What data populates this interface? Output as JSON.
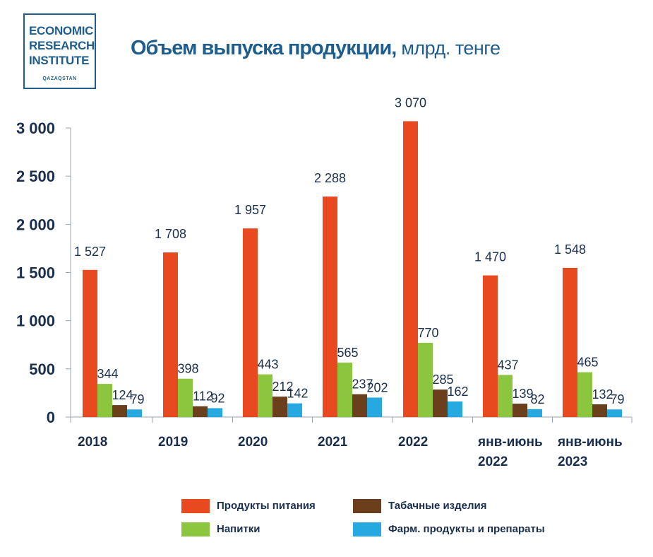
{
  "logo": {
    "line1": "ECONOMIC",
    "line2": "RESEARCH",
    "line3": "INSTITUTE",
    "sub": "QAZAQSTAN"
  },
  "title": {
    "main": "Объем выпуска продукции,",
    "unit": " млрд. тенге"
  },
  "chart_data": {
    "type": "bar",
    "categories": [
      [
        "2018"
      ],
      [
        "2019"
      ],
      [
        "2020"
      ],
      [
        "2021"
      ],
      [
        "2022"
      ],
      [
        "янв-июнь",
        "2022"
      ],
      [
        "янв-июнь",
        "2023"
      ]
    ],
    "series": [
      {
        "name": "Продукты питания",
        "color": "#e8491e",
        "values": [
          1527,
          1708,
          1957,
          2288,
          3070,
          1470,
          1548
        ],
        "labels": [
          "1 527",
          "1 708",
          "1 957",
          "2 288",
          "3 070",
          "1 470",
          "1 548"
        ]
      },
      {
        "name": "Напитки",
        "color": "#8cc63f",
        "values": [
          344,
          398,
          443,
          565,
          770,
          437,
          465
        ],
        "labels": [
          "344",
          "398",
          "443",
          "565",
          "770",
          "437",
          "465"
        ]
      },
      {
        "name": "Табачные изделия",
        "color": "#6b3f1c",
        "values": [
          124,
          112,
          212,
          237,
          285,
          139,
          132
        ],
        "labels": [
          "124",
          "112",
          "212",
          "237",
          "285",
          "139",
          "132"
        ]
      },
      {
        "name": "Фарм. продукты и препараты",
        "color": "#26a9e0",
        "values": [
          79,
          92,
          142,
          202,
          162,
          82,
          79
        ],
        "labels": [
          "79",
          "92",
          "142",
          "202",
          "162",
          "82",
          "79"
        ]
      }
    ],
    "yticks": [
      0,
      500,
      1000,
      1500,
      2000,
      2500,
      3000
    ],
    "ytick_labels": [
      "0",
      "500",
      "1 000",
      "1 500",
      "2 000",
      "2 500",
      "3 000"
    ],
    "ylim": [
      0,
      3000
    ],
    "grid": false,
    "legend_position": "bottom"
  }
}
